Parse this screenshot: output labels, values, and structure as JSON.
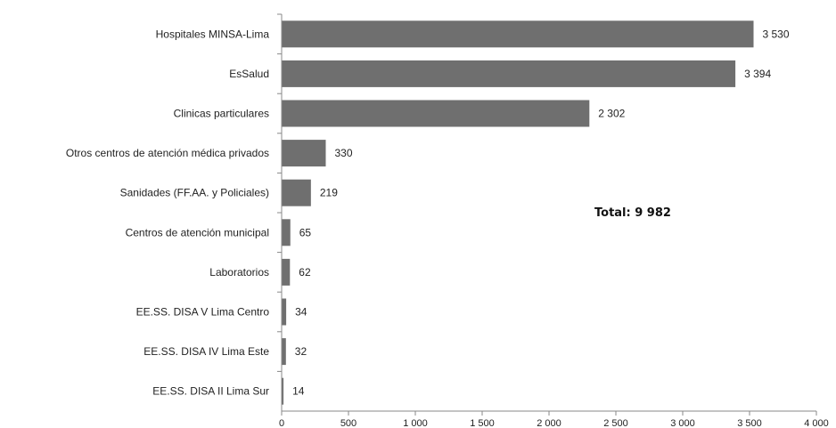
{
  "chart_data": {
    "type": "bar",
    "orientation": "horizontal",
    "categories": [
      "Hospitales MINSA-Lima",
      "EsSalud",
      "Clinicas particulares",
      "Otros centros de atención médica privados",
      "Sanidades (FF.AA. y Policiales)",
      "Centros de atención municipal",
      "Laboratorios",
      "EE.SS. DISA V Lima Centro",
      "EE.SS. DISA IV Lima Este",
      "EE.SS. DISA II Lima Sur"
    ],
    "values": [
      3530,
      3394,
      2302,
      330,
      219,
      65,
      62,
      34,
      32,
      14
    ],
    "value_labels": [
      "3 530",
      "3 394",
      "2 302",
      "330",
      "219",
      "65",
      "62",
      "34",
      "32",
      "14"
    ],
    "xlim": [
      0,
      4000
    ],
    "xticks": [
      0,
      500,
      1000,
      1500,
      2000,
      2500,
      3000,
      3500,
      4000
    ],
    "xtick_labels": [
      "0",
      "500",
      "1 000",
      "1 500",
      "2 000",
      "2 500",
      "3 000",
      "3 500",
      "4 000"
    ],
    "grid": false,
    "bar_color": "#6f6f6f",
    "annotation": "Total: 9 982"
  }
}
